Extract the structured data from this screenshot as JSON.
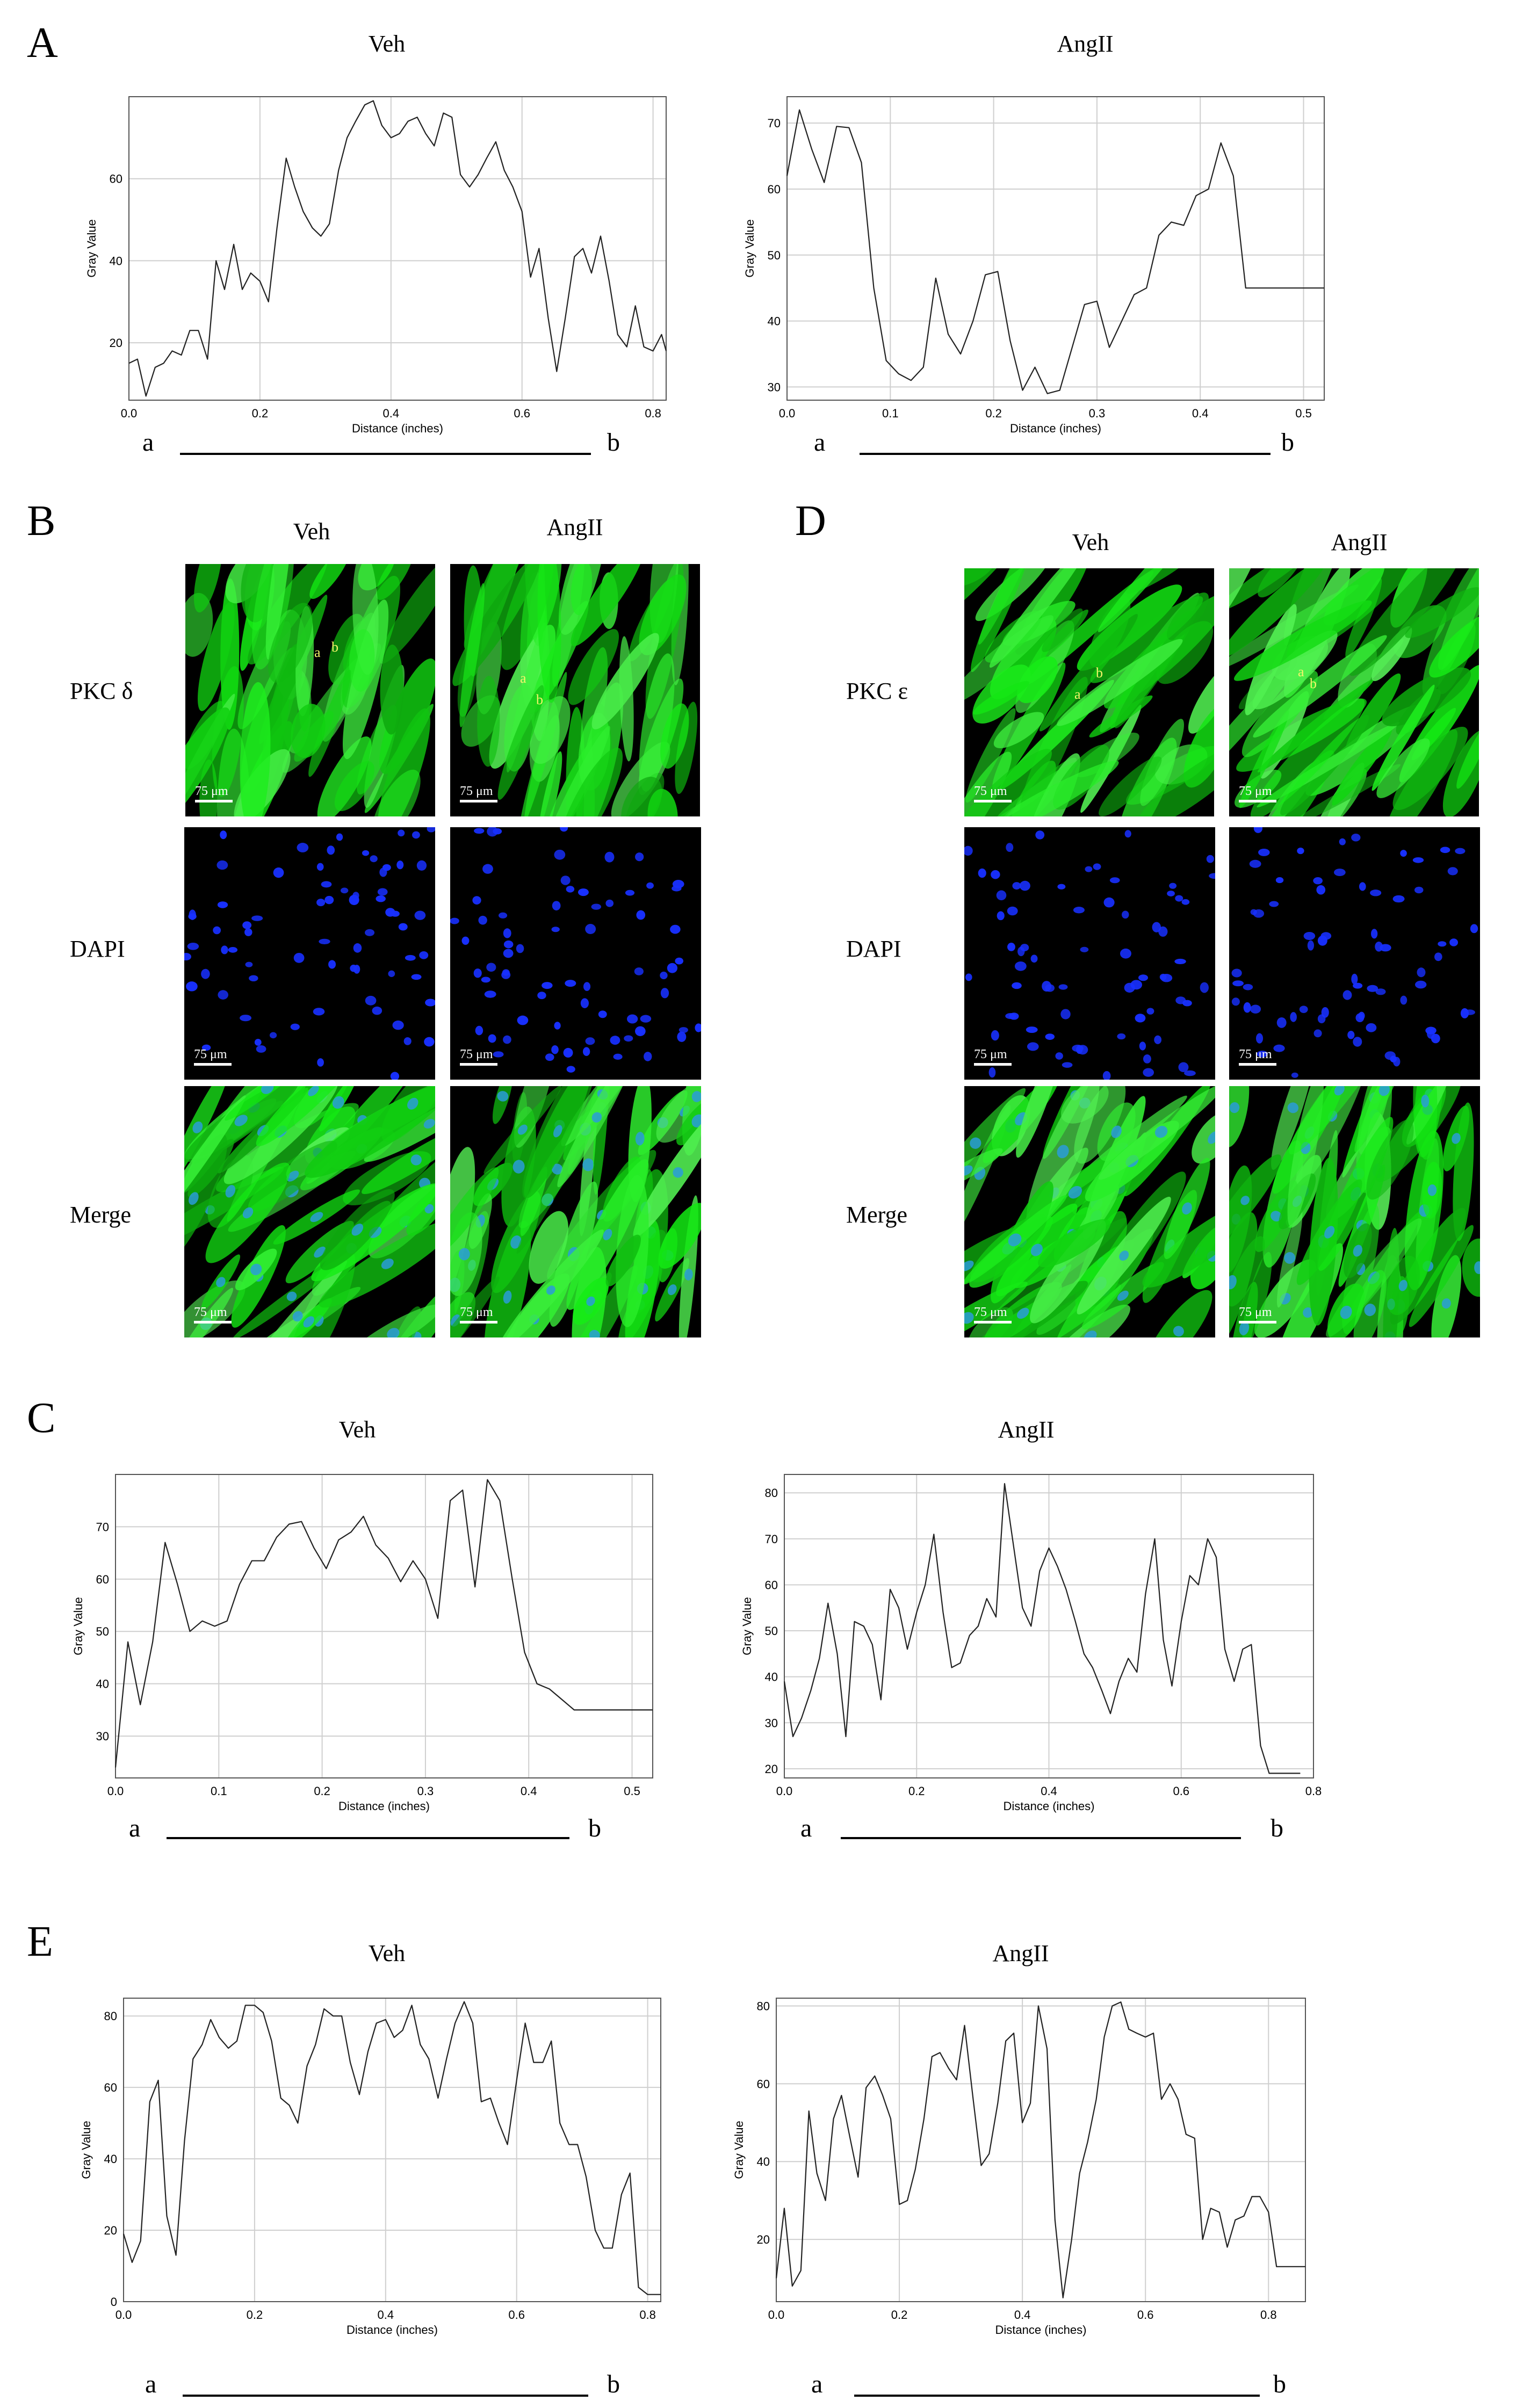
{
  "panels": [
    "A",
    "B",
    "C",
    "D",
    "E"
  ],
  "line_labels": {
    "a": "a",
    "b": "b"
  },
  "micrograph": {
    "col_veh": "Veh",
    "col_angii": "AngII",
    "row_pkc_delta": "PKC δ",
    "row_pkc_epsilon": "PKC ε",
    "row_dapi": "DAPI",
    "row_merge": "Merge",
    "scale_bar": "75 μm",
    "colors": {
      "pkc": "#22d022",
      "dapi": "#1830ff",
      "background": "#000000"
    }
  },
  "chart_data": [
    {
      "panel": "A",
      "title": "Veh",
      "type": "line",
      "xlabel": "Distance (inches)",
      "ylabel": "Gray Value",
      "xlim": [
        0,
        0.82
      ],
      "ylim": [
        6,
        80
      ],
      "xticks": [
        0.0,
        0.2,
        0.4,
        0.6,
        0.8
      ],
      "yticks": [
        20,
        40,
        60
      ],
      "grid": true,
      "x": [
        0,
        0.013,
        0.026,
        0.04,
        0.053,
        0.066,
        0.08,
        0.093,
        0.106,
        0.12,
        0.133,
        0.146,
        0.16,
        0.173,
        0.186,
        0.2,
        0.213,
        0.226,
        0.24,
        0.253,
        0.266,
        0.28,
        0.293,
        0.306,
        0.32,
        0.333,
        0.346,
        0.36,
        0.373,
        0.386,
        0.4,
        0.413,
        0.426,
        0.44,
        0.453,
        0.466,
        0.48,
        0.493,
        0.506,
        0.52,
        0.533,
        0.546,
        0.56,
        0.573,
        0.586,
        0.6,
        0.613,
        0.626,
        0.64,
        0.653,
        0.666,
        0.68,
        0.693,
        0.706,
        0.72,
        0.733,
        0.746,
        0.76,
        0.773,
        0.786,
        0.8,
        0.813,
        0.82
      ],
      "y": [
        15,
        16,
        7,
        14,
        15,
        18,
        17,
        23,
        23,
        16,
        40,
        33,
        44,
        33,
        37,
        35,
        30,
        48,
        65,
        58,
        52,
        48,
        46,
        49,
        62,
        70,
        74,
        78,
        79,
        73,
        70,
        71,
        74,
        75,
        71,
        68,
        76,
        75,
        61,
        58,
        61,
        65,
        69,
        62,
        58,
        52,
        36,
        43,
        26,
        13,
        26,
        41,
        43,
        37,
        46,
        35,
        22,
        19,
        29,
        19,
        18,
        22,
        18
      ]
    },
    {
      "panel": "A",
      "title": "AngII",
      "type": "line",
      "xlabel": "Distance (inches)",
      "ylabel": "Gray Value",
      "xlim": [
        0,
        0.52
      ],
      "ylim": [
        28,
        74
      ],
      "xticks": [
        0.0,
        0.1,
        0.2,
        0.3,
        0.4,
        0.5
      ],
      "yticks": [
        30,
        40,
        50,
        60,
        70
      ],
      "grid": true,
      "x": [
        0,
        0.012,
        0.024,
        0.036,
        0.048,
        0.06,
        0.072,
        0.084,
        0.096,
        0.108,
        0.12,
        0.132,
        0.144,
        0.156,
        0.168,
        0.18,
        0.192,
        0.204,
        0.216,
        0.228,
        0.24,
        0.252,
        0.264,
        0.276,
        0.288,
        0.3,
        0.312,
        0.324,
        0.336,
        0.348,
        0.36,
        0.372,
        0.384,
        0.396,
        0.408,
        0.42,
        0.432,
        0.444,
        0.456,
        0.468,
        0.48,
        0.492,
        0.504,
        0.516,
        0.52
      ],
      "y": [
        62,
        72,
        66,
        61,
        69.5,
        69.3,
        64,
        45,
        34,
        32,
        31,
        33,
        46.5,
        38,
        35,
        40,
        47,
        47.5,
        37,
        29.5,
        33,
        29,
        29.5,
        36,
        42.5,
        43,
        36,
        40,
        44,
        45,
        53,
        55,
        54.5,
        59,
        60,
        67,
        62,
        45,
        45,
        45,
        45,
        45,
        45,
        45,
        45
      ]
    },
    {
      "panel": "C",
      "title": "Veh",
      "type": "line",
      "xlabel": "Distance (inches)",
      "ylabel": "Gray Value",
      "xlim": [
        0,
        0.52
      ],
      "ylim": [
        22,
        80
      ],
      "xticks": [
        0.0,
        0.1,
        0.2,
        0.3,
        0.4,
        0.5
      ],
      "yticks": [
        30,
        40,
        50,
        60,
        70
      ],
      "grid": true,
      "x": [
        0,
        0.012,
        0.024,
        0.036,
        0.048,
        0.06,
        0.072,
        0.084,
        0.096,
        0.108,
        0.12,
        0.132,
        0.144,
        0.156,
        0.168,
        0.18,
        0.192,
        0.204,
        0.216,
        0.228,
        0.24,
        0.252,
        0.264,
        0.276,
        0.288,
        0.3,
        0.312,
        0.324,
        0.336,
        0.348,
        0.36,
        0.372,
        0.384,
        0.396,
        0.408,
        0.42,
        0.432,
        0.444,
        0.456,
        0.468,
        0.48,
        0.492,
        0.504,
        0.516,
        0.52
      ],
      "y": [
        24,
        48,
        36,
        48,
        67,
        59,
        50,
        52,
        51,
        52,
        59,
        63.5,
        63.5,
        68,
        70.5,
        71,
        66,
        62,
        67.5,
        69,
        72,
        66.5,
        64,
        59.5,
        63.5,
        60,
        52.5,
        75,
        77,
        58.5,
        79,
        75,
        60,
        46,
        40,
        39,
        37,
        35,
        35,
        35,
        35,
        35,
        35,
        35,
        35
      ]
    },
    {
      "panel": "C",
      "title": "AngII",
      "type": "line",
      "xlabel": "Distance (inches)",
      "ylabel": "Gray Value",
      "xlim": [
        0,
        0.8
      ],
      "ylim": [
        18,
        84
      ],
      "xticks": [
        0.0,
        0.2,
        0.4,
        0.6,
        0.8
      ],
      "yticks": [
        20,
        30,
        40,
        50,
        60,
        70,
        80
      ],
      "grid": true,
      "x": [
        0,
        0.013,
        0.026,
        0.04,
        0.053,
        0.066,
        0.08,
        0.093,
        0.106,
        0.12,
        0.133,
        0.146,
        0.16,
        0.173,
        0.186,
        0.2,
        0.213,
        0.226,
        0.24,
        0.253,
        0.266,
        0.28,
        0.293,
        0.306,
        0.32,
        0.333,
        0.346,
        0.36,
        0.373,
        0.386,
        0.4,
        0.413,
        0.426,
        0.44,
        0.453,
        0.466,
        0.48,
        0.493,
        0.506,
        0.52,
        0.533,
        0.546,
        0.56,
        0.573,
        0.586,
        0.6,
        0.613,
        0.626,
        0.64,
        0.653,
        0.666,
        0.68,
        0.693,
        0.706,
        0.72,
        0.733,
        0.746,
        0.76,
        0.773,
        0.78
      ],
      "y": [
        39,
        27,
        31,
        37,
        44,
        56,
        45,
        27,
        52,
        51,
        47,
        35,
        59,
        55,
        46,
        54,
        60,
        71,
        54,
        42,
        43,
        49,
        51,
        57,
        53,
        82,
        69,
        55,
        51,
        63,
        68,
        64,
        59,
        52,
        45,
        42,
        37,
        32,
        39,
        44,
        41,
        58,
        70,
        48,
        38,
        52,
        62,
        60,
        70,
        66,
        46,
        39,
        46,
        47,
        25,
        19,
        19,
        19,
        19,
        19
      ]
    },
    {
      "panel": "E",
      "title": "Veh",
      "type": "line",
      "xlabel": "Distance (inches)",
      "ylabel": "Gray Value",
      "xlim": [
        0,
        0.82
      ],
      "ylim": [
        0,
        85
      ],
      "xticks": [
        0.0,
        0.2,
        0.4,
        0.6,
        0.8
      ],
      "yticks": [
        0,
        20,
        40,
        60,
        80
      ],
      "grid": true,
      "x": [
        0,
        0.013,
        0.026,
        0.04,
        0.053,
        0.066,
        0.08,
        0.093,
        0.106,
        0.12,
        0.133,
        0.146,
        0.16,
        0.173,
        0.186,
        0.2,
        0.213,
        0.226,
        0.24,
        0.253,
        0.266,
        0.28,
        0.293,
        0.306,
        0.32,
        0.333,
        0.346,
        0.36,
        0.373,
        0.386,
        0.4,
        0.413,
        0.426,
        0.44,
        0.453,
        0.466,
        0.48,
        0.493,
        0.506,
        0.52,
        0.533,
        0.546,
        0.56,
        0.573,
        0.586,
        0.6,
        0.613,
        0.626,
        0.64,
        0.653,
        0.666,
        0.68,
        0.693,
        0.706,
        0.72,
        0.733,
        0.746,
        0.76,
        0.773,
        0.786,
        0.8,
        0.813,
        0.82
      ],
      "y": [
        19,
        11,
        17,
        56,
        62,
        24,
        13,
        45,
        68,
        72,
        79,
        74,
        71,
        73,
        83,
        83,
        81,
        73,
        57,
        55,
        50,
        66,
        72,
        82,
        80,
        80,
        67,
        58,
        70,
        78,
        79,
        74,
        76,
        83,
        72,
        68,
        57,
        68,
        78,
        84,
        78,
        56,
        57,
        50,
        44,
        62,
        78,
        67,
        67,
        73,
        50,
        44,
        44,
        35,
        20,
        15,
        15,
        30,
        36,
        4,
        2,
        2,
        2
      ]
    },
    {
      "panel": "E",
      "title": "AngII",
      "type": "line",
      "xlabel": "Distance (inches)",
      "ylabel": "Gray Value",
      "xlim": [
        0,
        0.86
      ],
      "ylim": [
        4,
        82
      ],
      "xticks": [
        0.0,
        0.2,
        0.4,
        0.6,
        0.8
      ],
      "yticks": [
        20,
        40,
        60,
        80
      ],
      "grid": true,
      "x": [
        0,
        0.013,
        0.026,
        0.04,
        0.053,
        0.066,
        0.08,
        0.093,
        0.106,
        0.12,
        0.133,
        0.146,
        0.16,
        0.173,
        0.186,
        0.2,
        0.213,
        0.226,
        0.24,
        0.253,
        0.266,
        0.28,
        0.293,
        0.306,
        0.32,
        0.333,
        0.346,
        0.36,
        0.373,
        0.386,
        0.4,
        0.413,
        0.426,
        0.44,
        0.453,
        0.466,
        0.48,
        0.493,
        0.506,
        0.52,
        0.533,
        0.546,
        0.56,
        0.573,
        0.586,
        0.6,
        0.613,
        0.626,
        0.64,
        0.653,
        0.666,
        0.68,
        0.693,
        0.706,
        0.72,
        0.733,
        0.746,
        0.76,
        0.773,
        0.786,
        0.8,
        0.813,
        0.826,
        0.84,
        0.853,
        0.86
      ],
      "y": [
        10,
        28,
        8,
        12,
        53,
        37,
        30,
        51,
        57,
        46,
        36,
        59,
        62,
        57,
        51,
        29,
        30,
        38,
        51,
        67,
        68,
        64,
        61,
        75,
        56,
        39,
        42,
        55,
        71,
        73,
        50,
        55,
        80,
        69,
        25,
        5,
        20,
        37,
        45,
        56,
        72,
        80,
        81,
        74,
        73,
        72,
        73,
        56,
        60,
        56,
        47,
        46,
        20,
        28,
        27,
        18,
        25,
        26,
        31,
        31,
        27,
        13,
        13,
        13,
        13,
        13
      ]
    }
  ]
}
